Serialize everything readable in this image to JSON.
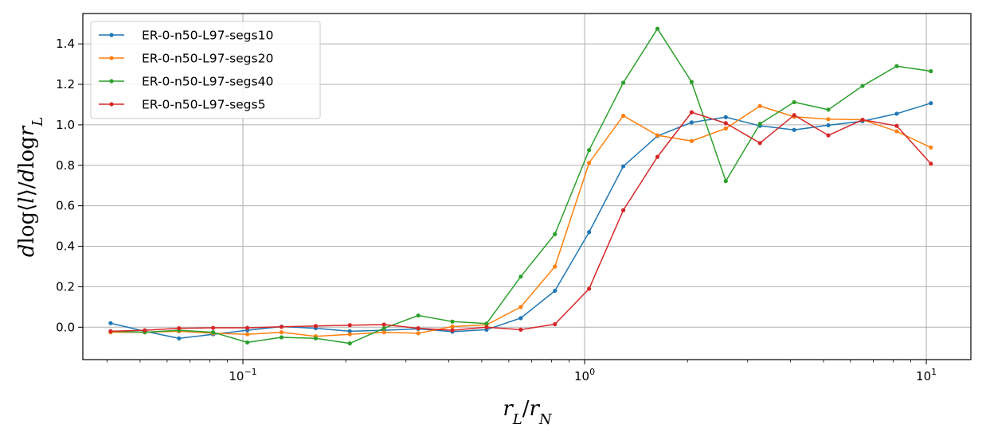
{
  "chart_data": {
    "type": "line",
    "xscale": "log",
    "xlim": [
      0.034,
      13.5
    ],
    "ylim": [
      -0.16,
      1.55
    ],
    "grid": true,
    "legend_position": "top-left",
    "xlabel": "r_L/r_N",
    "ylabel": "d log⟨l⟩/d log r_L",
    "xticks": [
      {
        "value": 0.1,
        "base": "10",
        "exp": "−1"
      },
      {
        "value": 1,
        "base": "10",
        "exp": "0"
      },
      {
        "value": 10,
        "base": "10",
        "exp": "1"
      }
    ],
    "yticks": [
      {
        "value": 0.0,
        "label": "0.0"
      },
      {
        "value": 0.2,
        "label": "0.2"
      },
      {
        "value": 0.4,
        "label": "0.4"
      },
      {
        "value": 0.6,
        "label": "0.6"
      },
      {
        "value": 0.8,
        "label": "0.8"
      },
      {
        "value": 1.0,
        "label": "1.0"
      },
      {
        "value": 1.2,
        "label": "1.2"
      },
      {
        "value": 1.4,
        "label": "1.4"
      }
    ],
    "x": [
      0.041,
      0.0516,
      0.065,
      0.0818,
      0.103,
      0.1297,
      0.1633,
      0.2055,
      0.2588,
      0.3258,
      0.4102,
      0.5164,
      0.6502,
      0.8186,
      1.0306,
      1.2975,
      1.6335,
      2.0566,
      2.5891,
      3.2596,
      4.1038,
      5.1666,
      6.5047,
      8.1893,
      10.31
    ],
    "series": [
      {
        "name": "ER-0-n50-L97-segs10",
        "color": "#1f77b4",
        "values": [
          0.02,
          -0.02,
          -0.055,
          -0.035,
          -0.015,
          0.003,
          -0.005,
          -0.02,
          -0.015,
          -0.008,
          -0.022,
          -0.012,
          0.045,
          0.18,
          0.47,
          0.795,
          0.945,
          1.012,
          1.038,
          0.995,
          0.975,
          0.998,
          1.018,
          1.055,
          1.107
        ]
      },
      {
        "name": "ER-0-n50-L97-segs20",
        "color": "#ff7f0e",
        "values": [
          -0.025,
          -0.025,
          -0.02,
          -0.03,
          -0.035,
          -0.025,
          -0.045,
          -0.035,
          -0.025,
          -0.03,
          0.003,
          0.012,
          0.1,
          0.3,
          0.812,
          1.045,
          0.948,
          0.92,
          0.982,
          1.093,
          1.04,
          1.028,
          1.025,
          0.968,
          0.888
        ]
      },
      {
        "name": "ER-0-n50-L97-segs40",
        "color": "#2ca02c",
        "values": [
          -0.02,
          -0.025,
          -0.015,
          -0.025,
          -0.075,
          -0.05,
          -0.055,
          -0.08,
          -0.005,
          0.058,
          0.028,
          0.018,
          0.25,
          0.46,
          0.875,
          1.208,
          1.475,
          1.212,
          0.722,
          1.005,
          1.112,
          1.075,
          1.192,
          1.29,
          1.265
        ]
      },
      {
        "name": "ER-0-n50-L97-segs5",
        "color": "#d62728",
        "values": [
          -0.02,
          -0.015,
          -0.005,
          -0.003,
          -0.003,
          0.002,
          0.006,
          0.01,
          0.013,
          -0.005,
          -0.015,
          0.0,
          -0.012,
          0.015,
          0.19,
          0.578,
          0.842,
          1.062,
          1.008,
          0.91,
          1.048,
          0.948,
          1.025,
          0.995,
          0.808
        ]
      }
    ]
  }
}
